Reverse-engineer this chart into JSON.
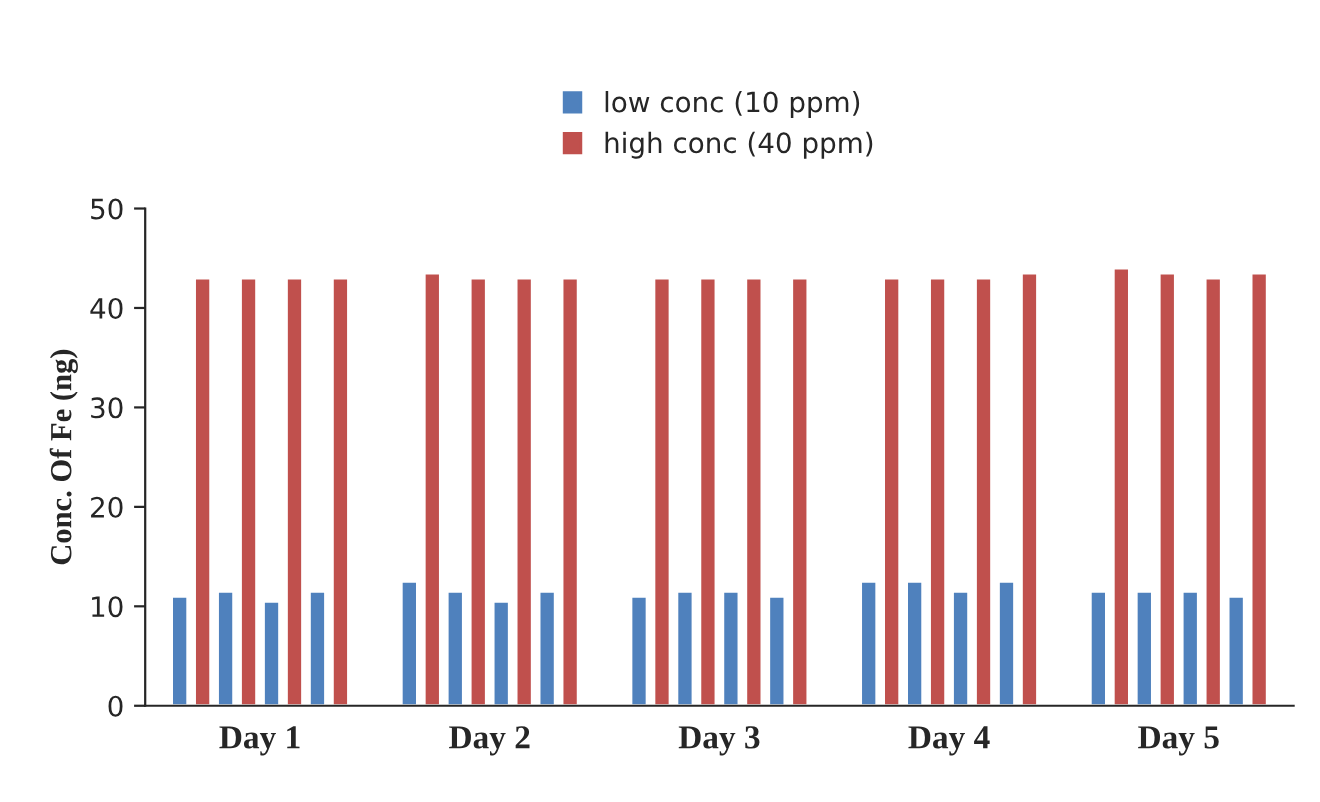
{
  "chart_data": {
    "type": "bar",
    "ylabel": "Conc. Of Fe (ng)",
    "categories": [
      "Day 1",
      "Day 2",
      "Day 3",
      "Day 4",
      "Day 5"
    ],
    "series": [
      {
        "name": "low conc (10 ppm)",
        "color": "#4f81bd",
        "values": [
          11,
          12.5,
          11,
          12.5,
          11.5
        ]
      },
      {
        "name": "high conc (40 ppm)",
        "color": "#c0504d",
        "values": [
          43,
          43.5,
          43,
          43,
          44
        ]
      },
      {
        "color": "#4f81bd",
        "values": [
          11.5,
          11.5,
          11.5,
          12.5,
          11.5
        ]
      },
      {
        "color": "#c0504d",
        "values": [
          43,
          43,
          43,
          43,
          43.5
        ]
      },
      {
        "color": "#4f81bd",
        "values": [
          10.5,
          10.5,
          11.5,
          11.5,
          11.5
        ]
      },
      {
        "color": "#c0504d",
        "values": [
          43,
          43,
          43,
          43,
          43
        ]
      },
      {
        "color": "#4f81bd",
        "values": [
          11.5,
          11.5,
          11,
          12.5,
          11
        ]
      },
      {
        "color": "#c0504d",
        "values": [
          43,
          43,
          43,
          43.5,
          43.5
        ]
      }
    ],
    "ylim": [
      0,
      50
    ],
    "yticks": [
      0,
      10,
      20,
      30,
      40,
      50
    ],
    "grid": false,
    "legend": "top"
  }
}
